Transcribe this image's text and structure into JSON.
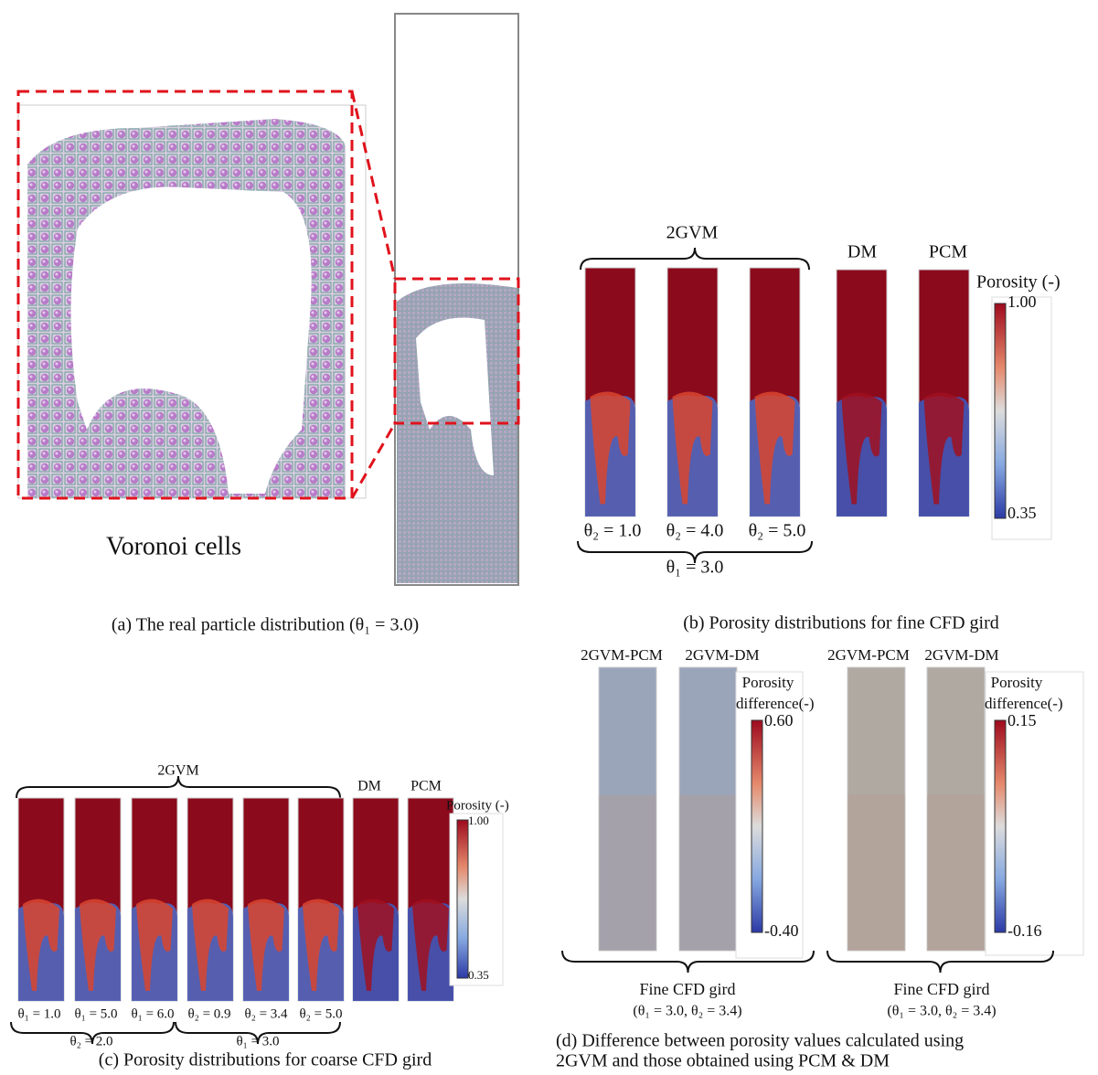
{
  "panel_a": {
    "label": "Voronoi cells",
    "caption": "(a) The real particle distribution (θ₁ = 3.0)"
  },
  "panel_b": {
    "group": "2GVM",
    "dm": "DM",
    "pcm": "PCM",
    "colorbar_title": "Porosity (-)",
    "colorbar_max": "1.00",
    "colorbar_min": "0.35",
    "column_labels": [
      "θ₂ = 1.0",
      "θ₂ = 4.0",
      "θ₂ = 5.0"
    ],
    "group_label": "θ₁ = 3.0",
    "caption": "(b) Porosity distributions for fine CFD gird"
  },
  "panel_c": {
    "group": "2GVM",
    "dm": "DM",
    "pcm": "PCM",
    "colorbar_title": "Porosity (-)",
    "colorbar_max": "1.00",
    "colorbar_min": "0.35",
    "column_labels": [
      "θ₁ = 1.0",
      "θ₁ = 5.0",
      "θ₁ = 6.0",
      "θ₂ = 0.9",
      "θ₂ = 3.4",
      "θ₂ = 5.0"
    ],
    "group_labels": [
      "θ₂ = 2.0",
      "θ₁ = 3.0"
    ],
    "caption": "(c) Porosity distributions for coarse CFD gird"
  },
  "panel_d": {
    "groups": [
      {
        "columns": [
          "2GVM-PCM",
          "2GVM-DM"
        ],
        "colorbar_title": [
          "Porosity",
          "difference(-)"
        ],
        "colorbar_max": "0.60",
        "colorbar_min": "-0.40",
        "grid": "Fine CFD gird",
        "params": "(θ₁ = 3.0, θ₂ = 3.4)"
      },
      {
        "columns": [
          "2GVM-PCM",
          "2GVM-DM"
        ],
        "colorbar_title": [
          "Porosity",
          "difference(-)"
        ],
        "colorbar_max": "0.15",
        "colorbar_min": "-0.16",
        "grid": "Fine CFD gird",
        "params": "(θ₁ = 3.0, θ₂ = 3.4)"
      }
    ],
    "caption": [
      "(d) Difference between porosity values calculated using",
      "2GVM and those obtained using PCM & DM"
    ]
  }
}
